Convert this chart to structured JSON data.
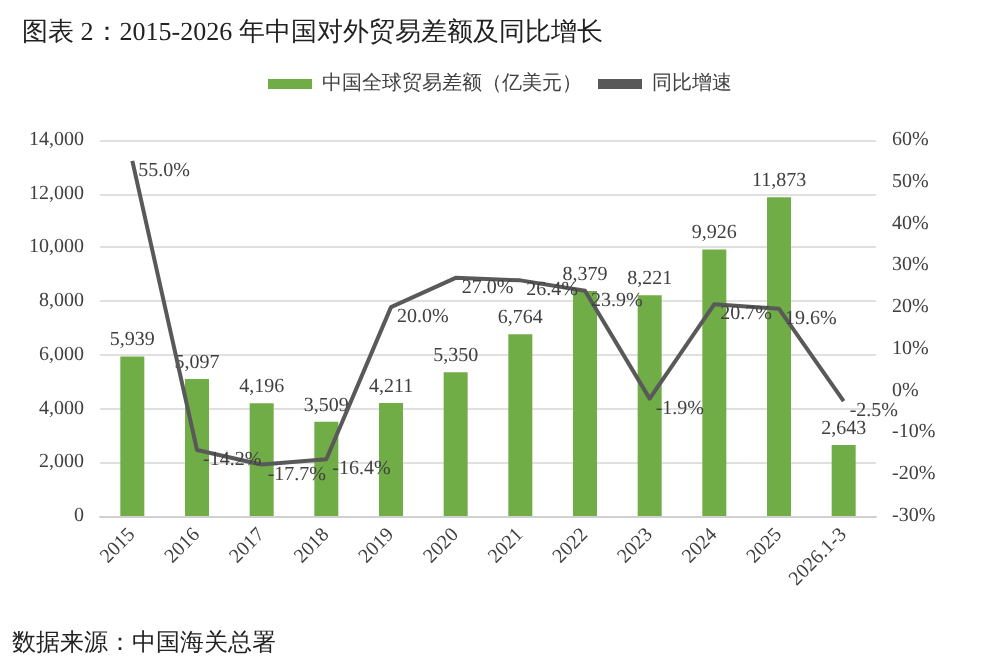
{
  "chart_data": {
    "type": "bar",
    "title": "图表 2：2015-2026 年中国对外贸易差额及同比增长",
    "categories": [
      "2015",
      "2016",
      "2017",
      "2018",
      "2019",
      "2020",
      "2021",
      "2022",
      "2023",
      "2024",
      "2025",
      "2026.1-3"
    ],
    "series": [
      {
        "name": "中国全球贸易差额（亿美元）",
        "color": "#70ad47",
        "values": [
          5939,
          5097,
          4196,
          3509,
          4211,
          5350,
          6764,
          8379,
          8221,
          9926,
          11873,
          2643
        ],
        "value_labels": [
          "5,939",
          "5,097",
          "4,196",
          "3,509",
          "4,211",
          "5,350",
          "6,764",
          "8,379",
          "8,221",
          "9,926",
          "11,873",
          "2,643"
        ]
      },
      {
        "name": "同比增速",
        "type": "line",
        "axis": "y2",
        "color": "#595959",
        "marker": "none",
        "values": [
          55.0,
          -14.2,
          -17.7,
          -16.4,
          20.0,
          27.0,
          26.4,
          23.9,
          -1.9,
          20.7,
          19.6,
          -2.5
        ],
        "value_labels": [
          "55.0%",
          "-14.2%",
          "-17.7%",
          "-16.4%",
          "20.0%",
          "27.0%",
          "26.4%",
          "23.9%",
          "-1.9%",
          "20.7%",
          "19.6%",
          "-2.5%"
        ]
      }
    ],
    "ylim": [
      0,
      14000
    ],
    "yticks": [
      {
        "value": 0,
        "label": "0"
      },
      {
        "value": 2000,
        "label": "2,000"
      },
      {
        "value": 4000,
        "label": "4,000"
      },
      {
        "value": 6000,
        "label": "6,000"
      },
      {
        "value": 8000,
        "label": "8,000"
      },
      {
        "value": 10000,
        "label": "10,000"
      },
      {
        "value": 12000,
        "label": "12,000"
      },
      {
        "value": 14000,
        "label": "14,000"
      }
    ],
    "y2lim": [
      -30,
      60
    ],
    "y2ticks": [
      {
        "value": -30,
        "label": "-30%"
      },
      {
        "value": -20,
        "label": "-20%"
      },
      {
        "value": -10,
        "label": "-10%"
      },
      {
        "value": 0,
        "label": "0%"
      },
      {
        "value": 10,
        "label": "10%"
      },
      {
        "value": 20,
        "label": "20%"
      },
      {
        "value": 30,
        "label": "30%"
      },
      {
        "value": 40,
        "label": "40%"
      },
      {
        "value": 50,
        "label": "50%"
      },
      {
        "value": 60,
        "label": "60%"
      }
    ],
    "grid": "y",
    "legend": "top",
    "annotations": [
      "数据来源：中国海关总署"
    ]
  }
}
